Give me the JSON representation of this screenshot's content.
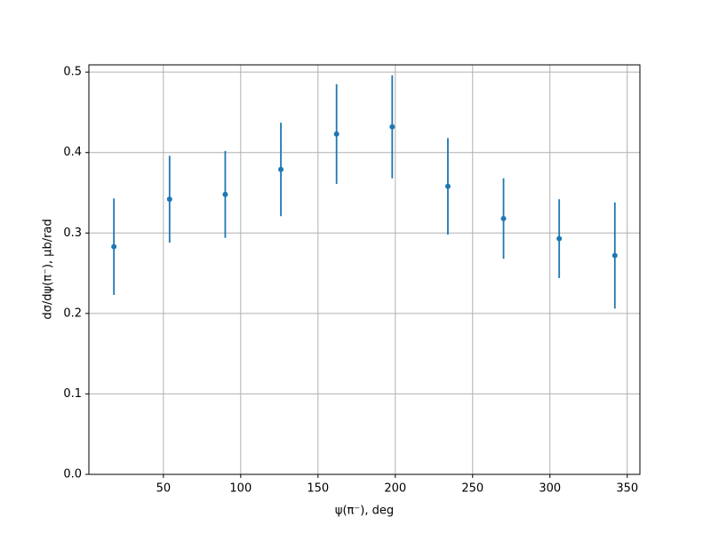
{
  "chart_data": {
    "type": "errorbar",
    "xlabel": "ψ(π⁻), deg",
    "ylabel": "dσ/dψ(π⁻), μb/rad",
    "x": [
      18,
      54,
      90,
      126,
      162,
      198,
      234,
      270,
      306,
      342
    ],
    "values": [
      0.283,
      0.342,
      0.348,
      0.379,
      0.423,
      0.432,
      0.358,
      0.318,
      0.293,
      0.272
    ],
    "errors": [
      0.06,
      0.054,
      0.054,
      0.058,
      0.062,
      0.064,
      0.06,
      0.05,
      0.049,
      0.066
    ],
    "color": "#1f77b4",
    "xlim": [
      1.8,
      358.2
    ],
    "ylim": [
      0,
      0.509
    ],
    "xticks": [
      50,
      100,
      150,
      200,
      250,
      300,
      350
    ],
    "yticks": [
      {
        "value": 0,
        "label": "0.0"
      },
      0.1,
      0.2,
      0.3,
      0.4,
      0.5
    ],
    "grid": true
  }
}
